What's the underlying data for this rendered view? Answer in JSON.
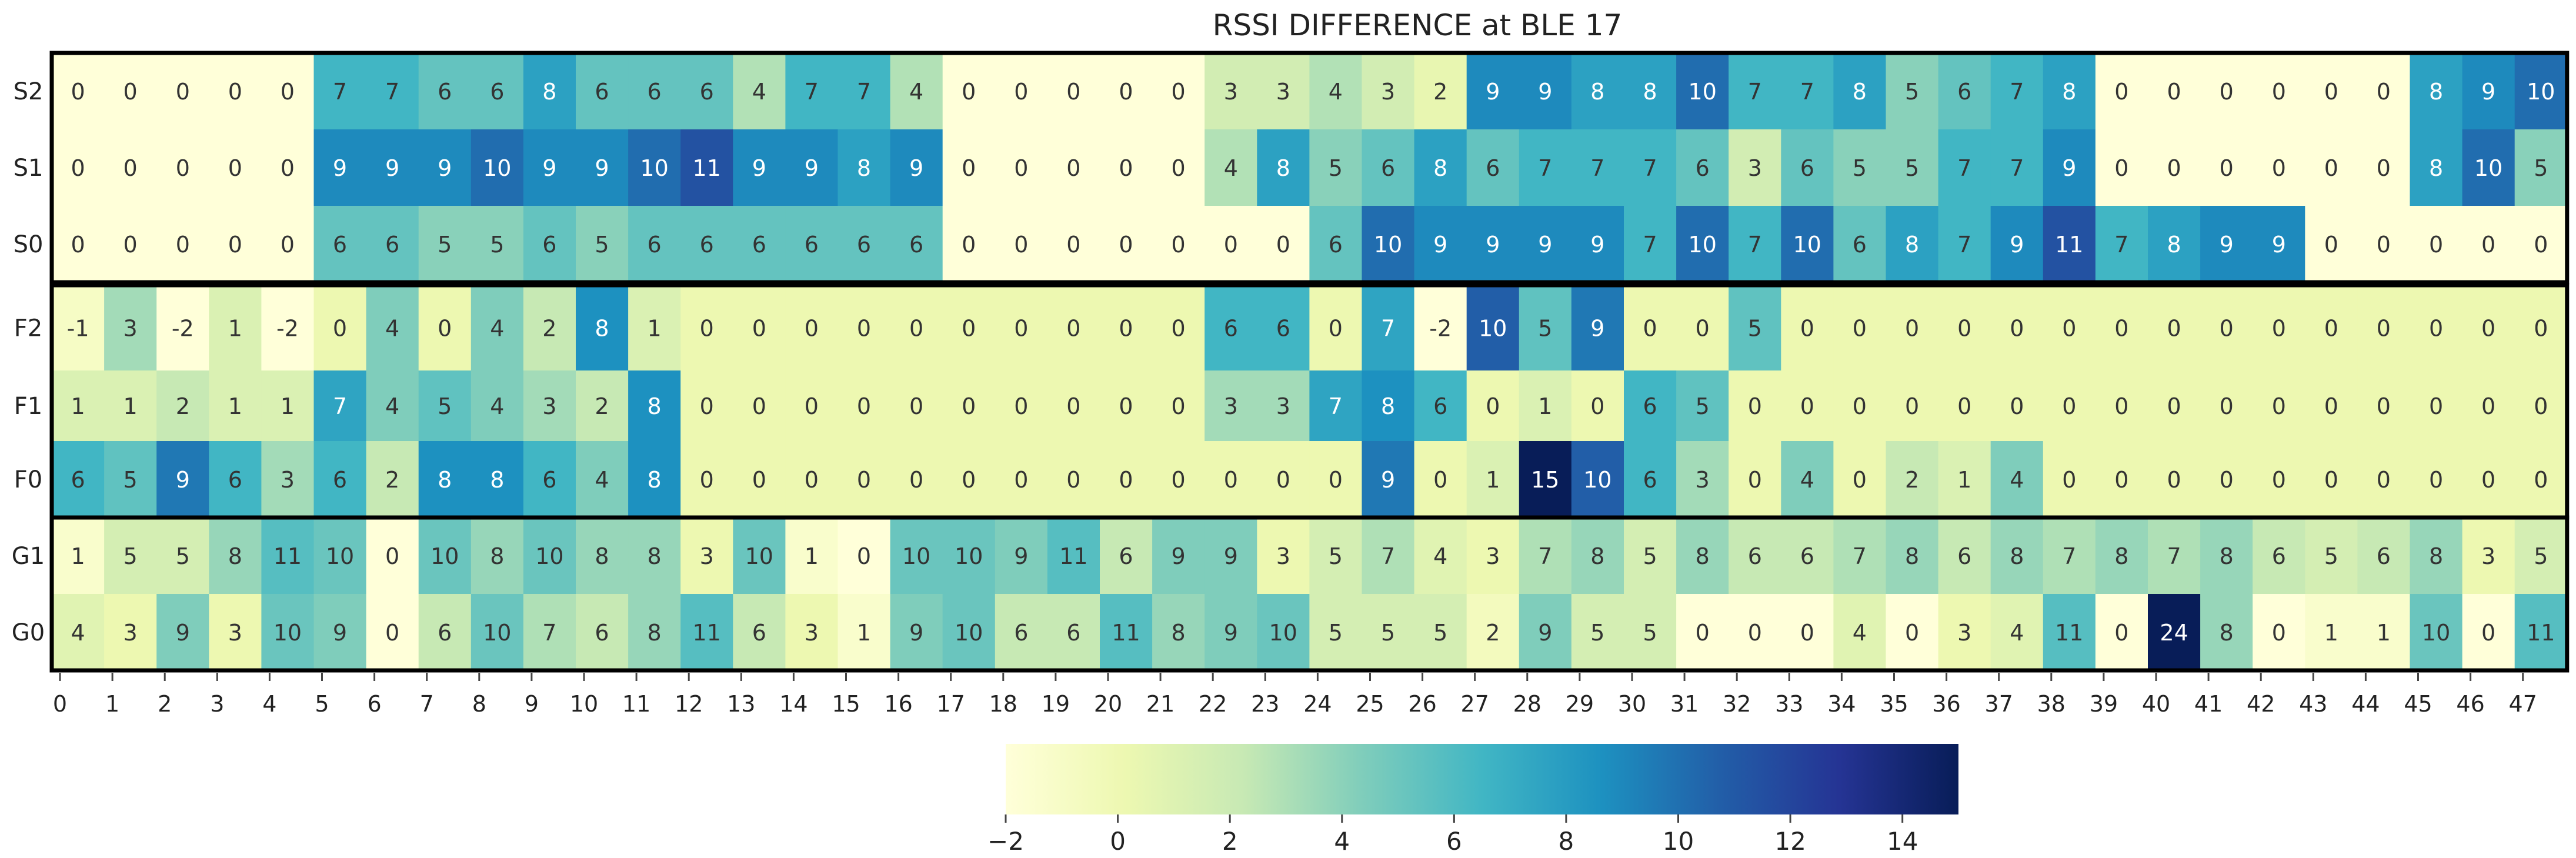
{
  "chart_data": {
    "type": "heatmap",
    "title": "RSSI DIFFERENCE at BLE 17",
    "xlabel": "",
    "ylabel": "",
    "x_categories": [
      "0",
      "1",
      "2",
      "3",
      "4",
      "5",
      "6",
      "7",
      "8",
      "9",
      "10",
      "11",
      "12",
      "13",
      "14",
      "15",
      "16",
      "17",
      "18",
      "19",
      "20",
      "21",
      "22",
      "23",
      "24",
      "25",
      "26",
      "27",
      "28",
      "29",
      "30",
      "31",
      "32",
      "33",
      "34",
      "35",
      "36",
      "37",
      "38",
      "39",
      "40",
      "41",
      "42",
      "43",
      "44",
      "45",
      "46",
      "47"
    ],
    "y_categories": [
      "S2",
      "S1",
      "S0",
      "F2",
      "F1",
      "F0",
      "G1",
      "G0"
    ],
    "groups": [
      [
        "S2",
        "S1",
        "S0"
      ],
      [
        "F2",
        "F1",
        "F0"
      ],
      [
        "G1",
        "G0"
      ]
    ],
    "values": [
      [
        0,
        0,
        0,
        0,
        0,
        7,
        7,
        6,
        6,
        8,
        6,
        6,
        6,
        4,
        7,
        7,
        4,
        0,
        0,
        0,
        0,
        0,
        3,
        3,
        4,
        3,
        2,
        9,
        9,
        8,
        8,
        10,
        7,
        7,
        8,
        5,
        6,
        7,
        8,
        0,
        0,
        0,
        0,
        0,
        0,
        8,
        9,
        10
      ],
      [
        0,
        0,
        0,
        0,
        0,
        9,
        9,
        9,
        10,
        9,
        9,
        10,
        11,
        9,
        9,
        8,
        9,
        0,
        0,
        0,
        0,
        0,
        4,
        8,
        5,
        6,
        8,
        6,
        7,
        7,
        7,
        6,
        3,
        6,
        5,
        5,
        7,
        7,
        9,
        0,
        0,
        0,
        0,
        0,
        0,
        8,
        10,
        5
      ],
      [
        0,
        0,
        0,
        0,
        0,
        6,
        6,
        5,
        5,
        6,
        5,
        6,
        6,
        6,
        6,
        6,
        6,
        0,
        0,
        0,
        0,
        0,
        0,
        0,
        6,
        10,
        9,
        9,
        9,
        9,
        7,
        10,
        7,
        10,
        6,
        8,
        7,
        9,
        11,
        7,
        8,
        9,
        9,
        0,
        0,
        0,
        0,
        0
      ],
      [
        -1,
        3,
        -2,
        1,
        -2,
        0,
        4,
        0,
        4,
        2,
        8,
        1,
        0,
        0,
        0,
        0,
        0,
        0,
        0,
        0,
        0,
        0,
        6,
        6,
        0,
        7,
        -2,
        10,
        5,
        9,
        0,
        0,
        5,
        0,
        0,
        0,
        0,
        0,
        0,
        0,
        0,
        0,
        0,
        0,
        0,
        0,
        0,
        0
      ],
      [
        1,
        1,
        2,
        1,
        1,
        7,
        4,
        5,
        4,
        3,
        2,
        8,
        0,
        0,
        0,
        0,
        0,
        0,
        0,
        0,
        0,
        0,
        3,
        3,
        7,
        8,
        6,
        0,
        1,
        0,
        6,
        5,
        0,
        0,
        0,
        0,
        0,
        0,
        0,
        0,
        0,
        0,
        0,
        0,
        0,
        0,
        0,
        0
      ],
      [
        6,
        5,
        9,
        6,
        3,
        6,
        2,
        8,
        8,
        6,
        4,
        8,
        0,
        0,
        0,
        0,
        0,
        0,
        0,
        0,
        0,
        0,
        0,
        0,
        0,
        9,
        0,
        1,
        15,
        10,
        6,
        3,
        0,
        4,
        0,
        2,
        1,
        4,
        0,
        0,
        0,
        0,
        0,
        0,
        0,
        0,
        0,
        0
      ],
      [
        1,
        5,
        5,
        8,
        11,
        10,
        0,
        10,
        8,
        10,
        8,
        8,
        3,
        10,
        1,
        0,
        10,
        10,
        9,
        11,
        6,
        9,
        9,
        3,
        5,
        7,
        4,
        3,
        7,
        8,
        5,
        8,
        6,
        6,
        7,
        8,
        6,
        8,
        7,
        8,
        7,
        8,
        6,
        5,
        6,
        8,
        3,
        5
      ],
      [
        4,
        3,
        9,
        3,
        10,
        9,
        0,
        6,
        10,
        7,
        6,
        8,
        11,
        6,
        3,
        1,
        9,
        10,
        6,
        6,
        11,
        8,
        9,
        10,
        5,
        5,
        5,
        2,
        9,
        5,
        5,
        0,
        0,
        0,
        4,
        0,
        3,
        4,
        11,
        0,
        24,
        8,
        0,
        1,
        1,
        10,
        0,
        11
      ]
    ],
    "group_color_ranges": [
      [
        0,
        14
      ],
      [
        -2,
        14
      ],
      [
        0,
        24
      ]
    ],
    "colorbar": {
      "min": -2,
      "max": 15,
      "ticks": [
        "−2",
        "0",
        "2",
        "4",
        "6",
        "8",
        "10",
        "12",
        "14"
      ],
      "tick_values": [
        -2,
        0,
        2,
        4,
        6,
        8,
        10,
        12,
        14
      ],
      "colormap": "YlGnBu",
      "colors": [
        "#ffffd9",
        "#edf8b1",
        "#c7e9b4",
        "#7fcdbb",
        "#41b6c4",
        "#1d91c0",
        "#225ea8",
        "#253494",
        "#081d58"
      ]
    },
    "grid": false,
    "legend": "bottom-center colorbar"
  }
}
